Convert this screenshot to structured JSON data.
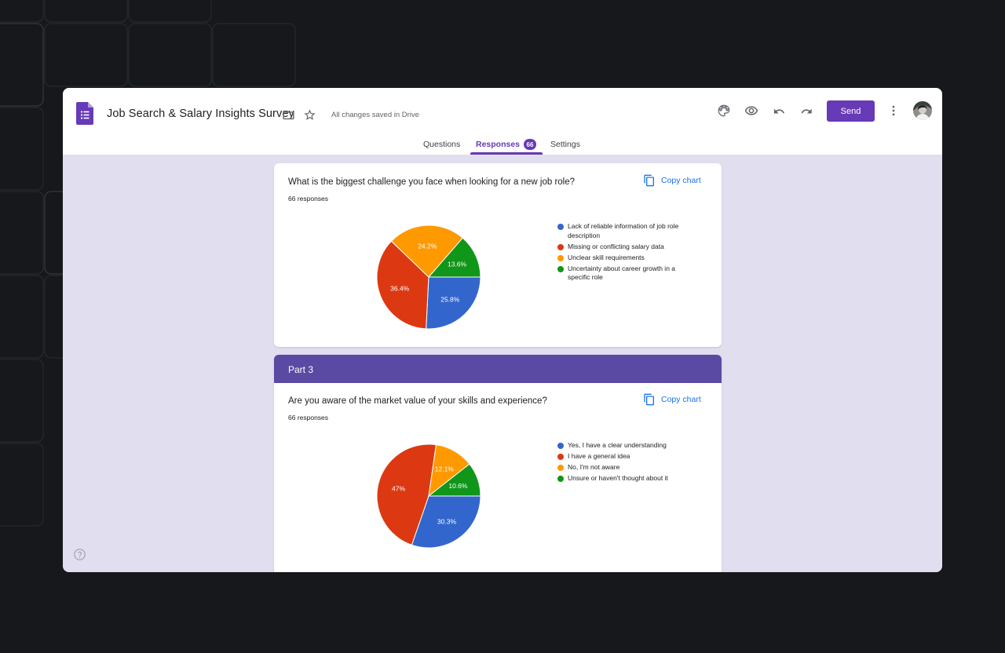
{
  "app": {
    "title": "Job Search & Salary Insights Survey",
    "saved_status": "All changes saved in Drive",
    "send_label": "Send"
  },
  "tabs": {
    "questions": "Questions",
    "responses": "Responses",
    "responses_count": "66",
    "settings": "Settings"
  },
  "colors": {
    "accent": "#673ab7",
    "section_header": "#5a4aa3",
    "content_bg": "#e1def0",
    "slice_blue": "#3366cc",
    "slice_red": "#dc3912",
    "slice_orange": "#ff9900",
    "slice_green": "#109618"
  },
  "icons": [
    "forms-logo-icon",
    "folder-icon",
    "star-icon",
    "palette-icon",
    "eye-icon",
    "undo-icon",
    "redo-icon",
    "more-vert-icon",
    "copy-icon",
    "help-icon"
  ],
  "questions": [
    {
      "title": "What is the biggest challenge you face when looking for a new job role?",
      "responses": "66 responses",
      "copy_label": "Copy chart"
    },
    {
      "section": "Part 3",
      "title": "Are you aware of the market value of your skills and experience?",
      "responses": "66 responses",
      "copy_label": "Copy chart"
    }
  ],
  "chart_data": [
    {
      "type": "pie",
      "categories": [
        "Lack of reliable information of job role description",
        "Missing or conflicting salary data",
        "Unclear skill requirements",
        "Uncertainty about career growth in a specific role"
      ],
      "values": [
        25.8,
        36.4,
        24.2,
        13.6
      ],
      "labels": [
        "25.8%",
        "36.4%",
        "24.2%",
        "13.6%"
      ],
      "colors": [
        "#3366cc",
        "#dc3912",
        "#ff9900",
        "#109618"
      ],
      "legend": "right"
    },
    {
      "type": "pie",
      "categories": [
        "Yes, I have a clear understanding",
        "I have a general idea",
        "No, I'm not aware",
        "Unsure or haven't thought about it"
      ],
      "values": [
        30.3,
        47,
        12.1,
        10.6
      ],
      "labels": [
        "30.3%",
        "47%",
        "12.1%",
        "10.6%"
      ],
      "colors": [
        "#3366cc",
        "#dc3912",
        "#ff9900",
        "#109618"
      ],
      "legend": "right"
    }
  ]
}
